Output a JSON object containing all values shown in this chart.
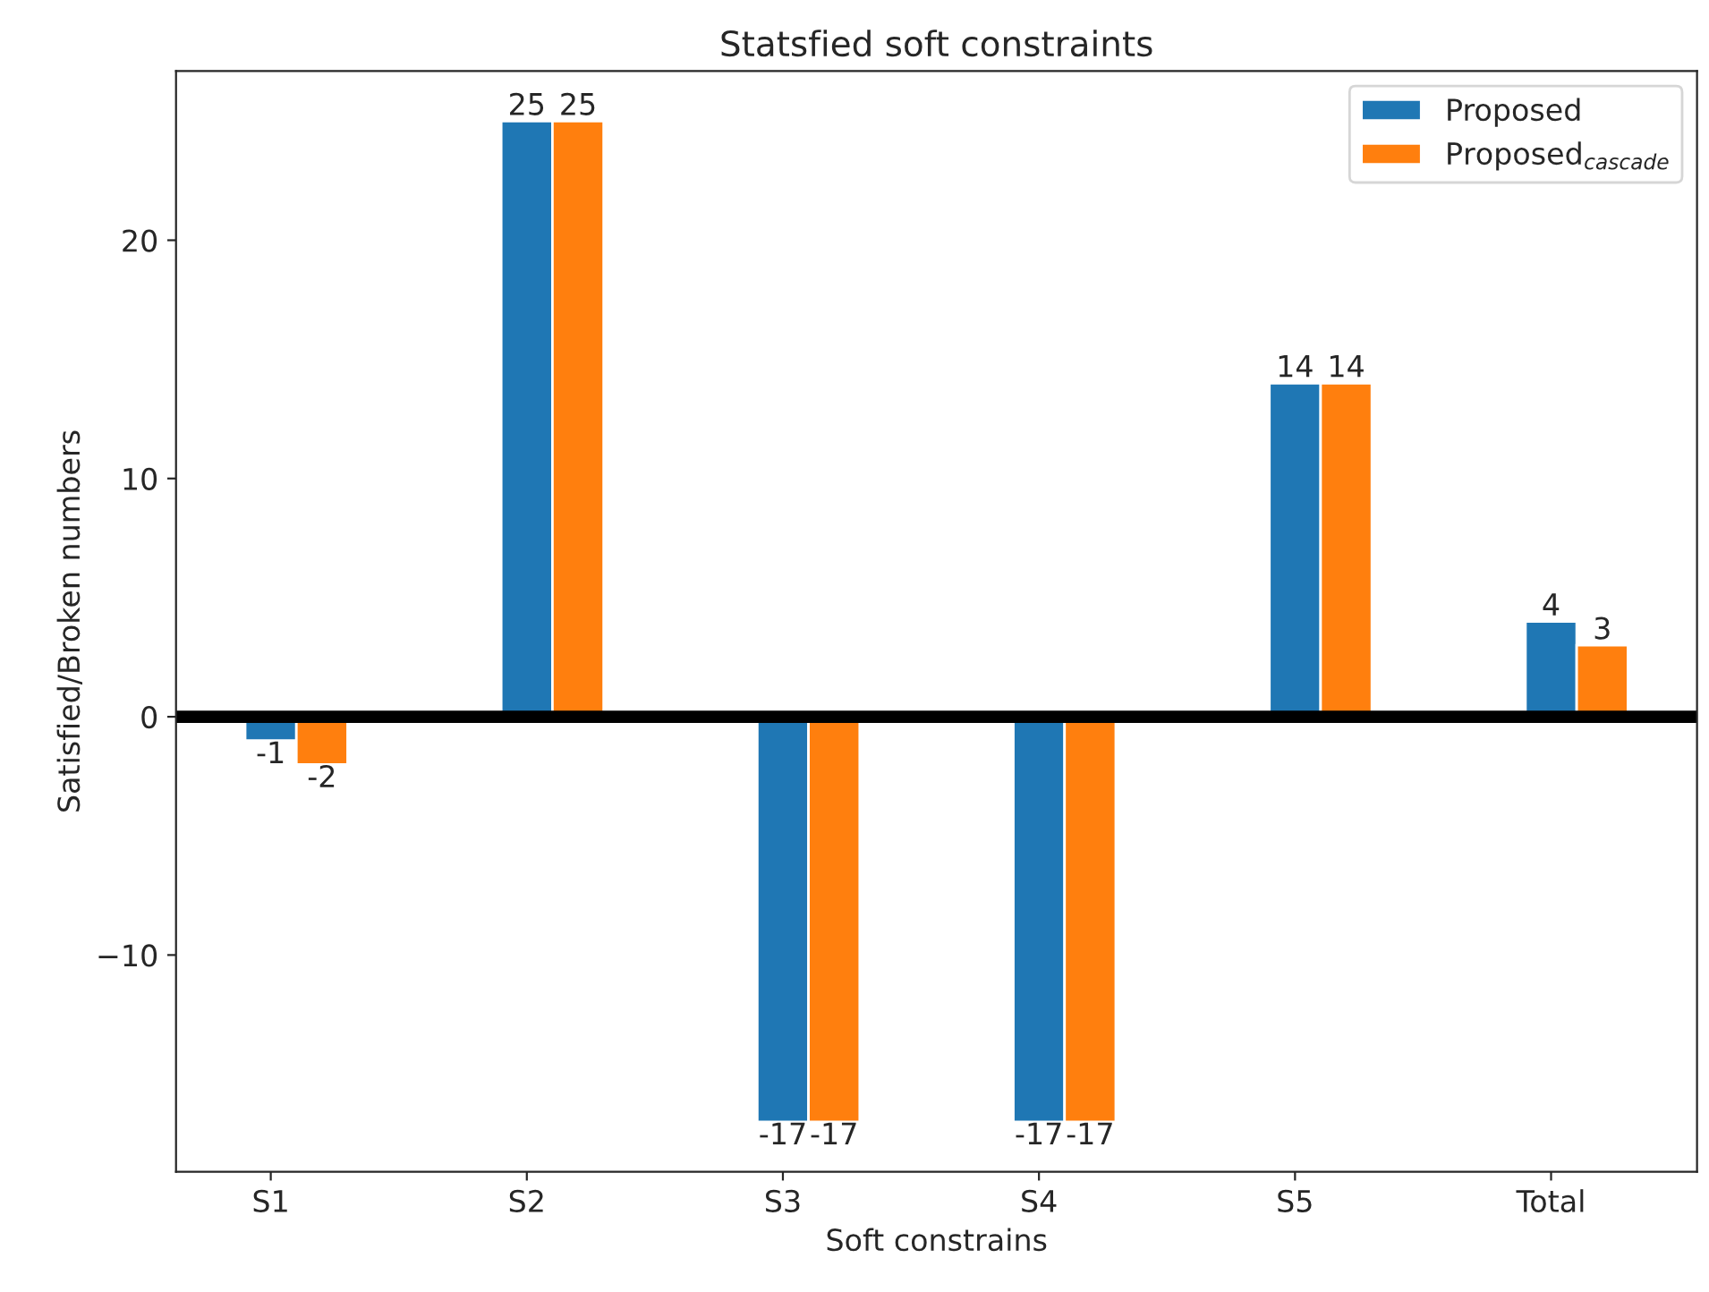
{
  "chart_data": {
    "type": "bar",
    "title": "Statsfied soft constraints",
    "xlabel": "Soft constrains",
    "ylabel": "Satisfied/Broken numbers",
    "categories": [
      "S1",
      "S2",
      "S3",
      "S4",
      "S5",
      "Total"
    ],
    "series": [
      {
        "name": "Proposed",
        "color": "#1f77b4",
        "values": [
          -1,
          25,
          -17,
          -17,
          14,
          4
        ]
      },
      {
        "name": "Proposed$_{cascade}$",
        "color": "#ff7f0e",
        "values": [
          -2,
          25,
          -17,
          -17,
          14,
          3
        ]
      }
    ],
    "ylim": [
      -19.1,
      27.1
    ],
    "yticks": [
      {
        "value": -10,
        "label": "−10"
      },
      0,
      10,
      20
    ],
    "ref_lines": [
      {
        "axis": "y",
        "value": 0,
        "color": "#000000"
      }
    ],
    "data_labels": true,
    "legend": "top right",
    "grid": false
  }
}
